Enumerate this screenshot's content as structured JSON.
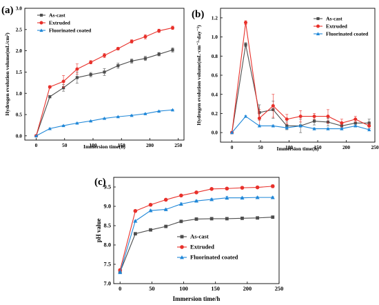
{
  "chart_data": [
    {
      "panel": "(a)",
      "type": "line",
      "xlabel": "Immersion time(h)",
      "ylabel": "Hydrogen evolution volume(mL/cm²)",
      "xlim": [
        -20,
        260
      ],
      "ylim": [
        -0.1,
        3.0
      ],
      "x_ticks": [
        "0",
        "50",
        "100",
        "150",
        "200",
        "250"
      ],
      "y_ticks": [
        "0.0",
        "0.5",
        "1.0",
        "1.5",
        "2.0",
        "2.5",
        "3.0"
      ],
      "legend_position": "top-left",
      "x": [
        0,
        24,
        48,
        72,
        96,
        120,
        144,
        168,
        192,
        216,
        240
      ],
      "series": [
        {
          "name": "As-cast",
          "color": "#4d4d4d",
          "marker": "square",
          "values": [
            0,
            0.92,
            1.13,
            1.37,
            1.44,
            1.5,
            1.65,
            1.76,
            1.82,
            1.92,
            2.02
          ],
          "errors": [
            0,
            0.03,
            0.08,
            0.13,
            0.05,
            0.08,
            0.06,
            0.05,
            0.05,
            0.04,
            0.05
          ]
        },
        {
          "name": "Extruded",
          "color": "#e8302a",
          "marker": "circle",
          "values": [
            0,
            1.15,
            1.28,
            1.57,
            1.73,
            1.89,
            2.05,
            2.22,
            2.33,
            2.47,
            2.54
          ],
          "errors": [
            0,
            0.03,
            0.14,
            0.12,
            0.04,
            0.05,
            0.03,
            0.04,
            0.05,
            0.04,
            0.04
          ]
        },
        {
          "name": "Fluorinated coated",
          "color": "#1f87d8",
          "marker": "triangle",
          "values": [
            0,
            0.17,
            0.24,
            0.3,
            0.35,
            0.41,
            0.45,
            0.48,
            0.52,
            0.58,
            0.61
          ],
          "errors": [
            0,
            0.01,
            0.01,
            0.01,
            0.01,
            0.01,
            0.01,
            0.01,
            0.01,
            0.01,
            0.01
          ]
        }
      ]
    },
    {
      "panel": "(b)",
      "type": "line",
      "xlabel": "Immersion time(h)",
      "ylabel": "Hydrogen evolution volume(mL·cm⁻²·day⁻¹)",
      "xlim": [
        -20,
        250
      ],
      "ylim": [
        -0.1,
        1.3
      ],
      "x_ticks": [
        "0",
        "50",
        "100",
        "150",
        "200",
        "250"
      ],
      "y_ticks": [
        "0.0",
        "0.2",
        "0.4",
        "0.6",
        "0.8",
        "1.0",
        "1.2"
      ],
      "legend_position": "top-right",
      "x": [
        0,
        24,
        48,
        72,
        96,
        120,
        144,
        168,
        192,
        216,
        240
      ],
      "series": [
        {
          "name": "As-cast",
          "color": "#4d4d4d",
          "marker": "square",
          "values": [
            0,
            0.92,
            0.21,
            0.24,
            0.07,
            0.07,
            0.12,
            0.11,
            0.07,
            0.1,
            0.1
          ],
          "errors": [
            0,
            0.02,
            0.08,
            0.09,
            0.04,
            0.07,
            0.04,
            0.04,
            0.03,
            0.03,
            0.04
          ]
        },
        {
          "name": "Extruded",
          "color": "#e8302a",
          "marker": "circle",
          "values": [
            0,
            1.15,
            0.15,
            0.28,
            0.14,
            0.17,
            0.17,
            0.17,
            0.1,
            0.14,
            0.07
          ],
          "errors": [
            0,
            0.02,
            0.09,
            0.12,
            0.05,
            0.06,
            0.03,
            0.07,
            0.04,
            0.03,
            0.03
          ]
        },
        {
          "name": "Fluorinated coated",
          "color": "#1f87d8",
          "marker": "triangle",
          "values": [
            0,
            0.17,
            0.07,
            0.07,
            0.05,
            0.07,
            0.04,
            0.04,
            0.04,
            0.07,
            0.03
          ],
          "errors": [
            0,
            0.01,
            0.01,
            0.01,
            0.01,
            0.01,
            0.01,
            0.01,
            0.01,
            0.01,
            0.01
          ]
        }
      ]
    },
    {
      "panel": "(c)",
      "type": "line",
      "xlabel": "Immersion time/h",
      "ylabel": "pH value",
      "xlim": [
        -10,
        250
      ],
      "ylim": [
        7.0,
        9.75
      ],
      "x_ticks": [
        "0",
        "50",
        "100",
        "150",
        "200",
        "250"
      ],
      "y_ticks": [
        "7.0",
        "7.5",
        "8.0",
        "8.5",
        "9.0",
        "9.5"
      ],
      "legend_position": "bottom-left",
      "x": [
        0,
        24,
        48,
        72,
        96,
        120,
        144,
        168,
        192,
        216,
        240
      ],
      "series": [
        {
          "name": "As-cast",
          "color": "#4d4d4d",
          "marker": "square",
          "values": [
            7.3,
            8.29,
            8.39,
            8.48,
            8.61,
            8.67,
            8.68,
            8.68,
            8.69,
            8.7,
            8.72
          ],
          "errors": [
            0.02,
            0.02,
            0.02,
            0.02,
            0.02,
            0.03,
            0.02,
            0.02,
            0.02,
            0.02,
            0.03
          ]
        },
        {
          "name": "Extruded",
          "color": "#e8302a",
          "marker": "circle",
          "values": [
            7.35,
            8.88,
            9.04,
            9.17,
            9.28,
            9.36,
            9.45,
            9.46,
            9.48,
            9.49,
            9.52
          ],
          "errors": [
            0.02,
            0.02,
            0.02,
            0.02,
            0.03,
            0.02,
            0.02,
            0.02,
            0.03,
            0.02,
            0.04
          ]
        },
        {
          "name": "Fluorinated coated",
          "color": "#1f87d8",
          "marker": "triangle",
          "values": [
            7.29,
            8.62,
            8.89,
            8.92,
            9.06,
            9.14,
            9.18,
            9.22,
            9.22,
            9.23,
            9.23
          ],
          "errors": [
            0.02,
            0.02,
            0.02,
            0.02,
            0.03,
            0.02,
            0.02,
            0.04,
            0.02,
            0.02,
            0.02
          ]
        }
      ]
    }
  ]
}
